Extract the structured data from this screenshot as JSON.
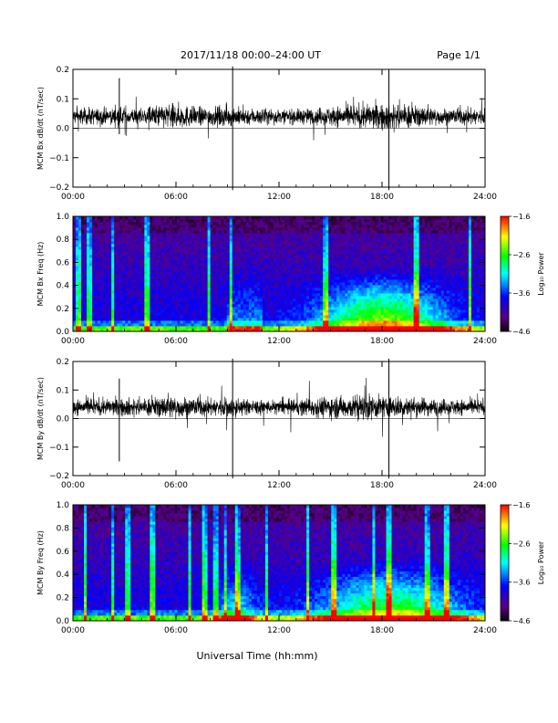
{
  "header": {
    "title": "2017/11/18  00:00–24:00 UT",
    "page": "Page 1/1"
  },
  "xlabel": "Universal Time (hh:mm)",
  "chart_data": [
    {
      "type": "line",
      "ylabel": "MCM Bx dB/dt (nT/sec)",
      "xlim": [
        0,
        24
      ],
      "ylim": [
        -0.2,
        0.2
      ],
      "x_ticks": [
        "00:00",
        "06:00",
        "12:00",
        "18:00",
        "24:00"
      ],
      "y_ticks": [
        "−0.2",
        "−0.1",
        "0.0",
        "0.1",
        "0.2"
      ],
      "series": [
        {
          "values": [
            0.04,
            0.043,
            0.038,
            0.045,
            0.04,
            0.06,
            0.065,
            0.05,
            0.048,
            0.052,
            0.045,
            0.04,
            0.035,
            0.038,
            0.042,
            0.05,
            0.055,
            0.06,
            0.07,
            0.065,
            0.055,
            0.045,
            0.04,
            0.042
          ]
        }
      ],
      "spikes": [
        {
          "x": 2.7,
          "y_min": -0.02,
          "y_max": 0.17
        },
        {
          "x": 9.3,
          "y_min": -0.21,
          "y_max": 0.21
        },
        {
          "x": 18.4,
          "y_min": -0.21,
          "y_max": 0.2
        }
      ],
      "line_color": "#000000"
    },
    {
      "type": "heatmap",
      "ylabel": "MCM Bx Freq (Hz)",
      "xlim": [
        0,
        24
      ],
      "ylim": [
        0,
        1.0
      ],
      "x_ticks": [
        "00:00",
        "06:00",
        "12:00",
        "18:00",
        "24:00"
      ],
      "y_ticks": [
        "0.0",
        "0.2",
        "0.4",
        "0.6",
        "0.8",
        "1.0"
      ],
      "colorbar": {
        "label": "Log₁₀ Power",
        "range": [
          -4.6,
          -1.6
        ],
        "ticks": [
          "−1.6",
          "−2.6",
          "−3.6",
          "−4.6"
        ]
      }
    },
    {
      "type": "line",
      "ylabel": "MCM By dB/dt (nT/sec)",
      "xlim": [
        0,
        24
      ],
      "ylim": [
        -0.2,
        0.2
      ],
      "x_ticks": [
        "00:00",
        "06:00",
        "12:00",
        "18:00",
        "24:00"
      ],
      "y_ticks": [
        "−0.2",
        "−0.1",
        "0.0",
        "0.1",
        "0.2"
      ],
      "series": [
        {
          "values": [
            0.04,
            0.045,
            0.04,
            0.05,
            0.042,
            0.055,
            0.06,
            0.05,
            0.045,
            0.055,
            0.04,
            0.038,
            0.036,
            0.04,
            0.05,
            0.058,
            0.06,
            0.065,
            0.06,
            0.055,
            0.05,
            0.045,
            0.042,
            0.04
          ]
        }
      ],
      "spikes": [
        {
          "x": 2.7,
          "y_min": -0.15,
          "y_max": 0.14
        },
        {
          "x": 9.3,
          "y_min": -0.21,
          "y_max": 0.21
        },
        {
          "x": 18.4,
          "y_min": -0.21,
          "y_max": 0.21
        }
      ],
      "line_color": "#000000"
    },
    {
      "type": "heatmap",
      "ylabel": "MCM By Freq (Hz)",
      "xlim": [
        0,
        24
      ],
      "ylim": [
        0,
        1.0
      ],
      "x_ticks": [
        "00:00",
        "06:00",
        "12:00",
        "18:00",
        "24:00"
      ],
      "y_ticks": [
        "0.0",
        "0.2",
        "0.4",
        "0.6",
        "0.8",
        "1.0"
      ],
      "colorbar": {
        "label": "Log₁₀ Power",
        "range": [
          -4.6,
          -1.6
        ],
        "ticks": [
          "−1.6",
          "−2.6",
          "−3.6",
          "−4.6"
        ]
      }
    }
  ]
}
